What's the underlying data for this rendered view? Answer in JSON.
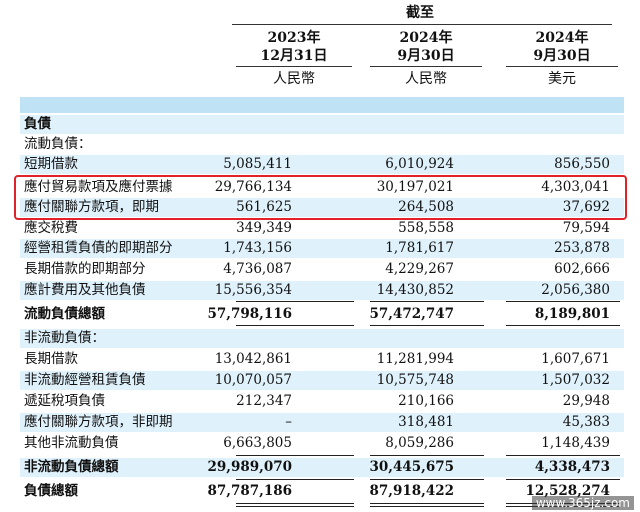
{
  "header": {
    "as_at": "截至",
    "columns": [
      {
        "year": "2023年",
        "date": "12月31日",
        "currency": "人民幣"
      },
      {
        "year": "2024年",
        "date": "9月30日",
        "currency": "人民幣"
      },
      {
        "year": "2024年",
        "date": "9月30日",
        "currency": "美元"
      }
    ]
  },
  "table": {
    "section_title": "負債",
    "current_title": "流動負債：",
    "current_rows": [
      {
        "label": "短期借款",
        "v1": "5,085,411",
        "v2": "6,010,924",
        "v3": "856,550"
      },
      {
        "label": "應付貿易款項及應付票據",
        "v1": "29,766,134",
        "v2": "30,197,021",
        "v3": "4,303,041"
      },
      {
        "label": "應付關聯方款項，即期",
        "v1": "561,625",
        "v2": "264,508",
        "v3": "37,692"
      },
      {
        "label": "應交稅費",
        "v1": "349,349",
        "v2": "558,558",
        "v3": "79,594"
      },
      {
        "label": "經營租賃負債的即期部分",
        "v1": "1,743,156",
        "v2": "1,781,617",
        "v3": "253,878"
      },
      {
        "label": "長期借款的即期部分",
        "v1": "4,736,087",
        "v2": "4,229,267",
        "v3": "602,666"
      },
      {
        "label": "應計費用及其他負債",
        "v1": "15,556,354",
        "v2": "14,430,852",
        "v3": "2,056,380"
      }
    ],
    "current_total": {
      "label": "流動負債總額",
      "v1": "57,798,116",
      "v2": "57,472,747",
      "v3": "8,189,801"
    },
    "noncurrent_title": "非流動負債：",
    "noncurrent_rows": [
      {
        "label": "長期借款",
        "v1": "13,042,861",
        "v2": "11,281,994",
        "v3": "1,607,671"
      },
      {
        "label": "非流動經營租賃負債",
        "v1": "10,070,057",
        "v2": "10,575,748",
        "v3": "1,507,032"
      },
      {
        "label": "遞延稅項負債",
        "v1": "212,347",
        "v2": "210,166",
        "v3": "29,948"
      },
      {
        "label": "應付關聯方款項，非即期",
        "v1": "–",
        "v2": "318,481",
        "v3": "45,383"
      },
      {
        "label": "其他非流動負債",
        "v1": "6,663,805",
        "v2": "8,059,286",
        "v3": "1,148,439"
      }
    ],
    "noncurrent_total": {
      "label": "非流動負債總額",
      "v1": "29,989,070",
      "v2": "30,445,675",
      "v3": "4,338,473"
    },
    "grand_total": {
      "label": "負債總額",
      "v1": "87,787,186",
      "v2": "87,918,422",
      "v3": "12,528,274"
    }
  },
  "watermark": "www.365jz.com",
  "colors": {
    "band": "#bfe3f5",
    "shade": "#dff1fb",
    "highlight": "#e0232b"
  }
}
